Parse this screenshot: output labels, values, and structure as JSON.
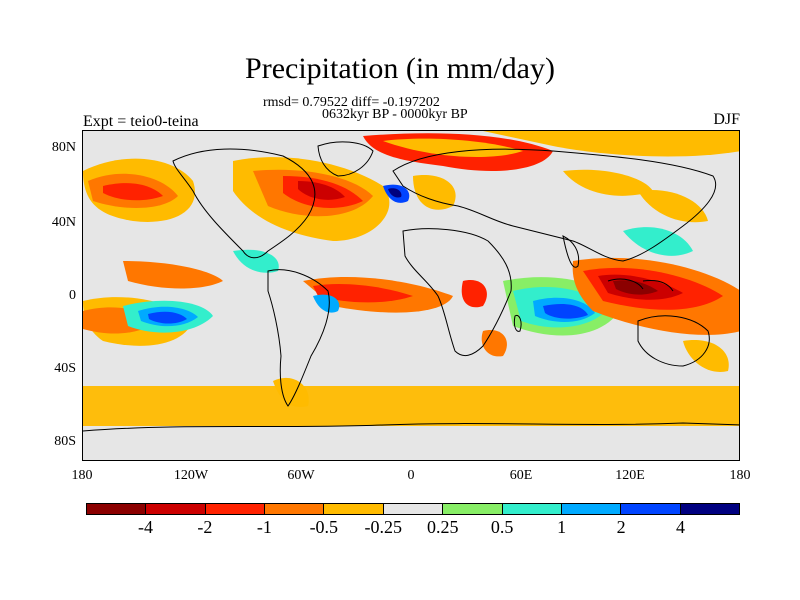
{
  "title": "Precipitation (in mm/day)",
  "stats": "rmsd= 0.79522 diff= -0.197202",
  "period": "0632kyr BP - 0000kyr BP",
  "experiment": "Expt = teio0-teina",
  "season": "DJF",
  "lat_labels": [
    "80N",
    "40N",
    "0",
    "40S",
    "80S"
  ],
  "lon_labels": [
    "180",
    "120W",
    "60W",
    "0",
    "60E",
    "120E",
    "180"
  ],
  "colorbar": {
    "colors": [
      "#8b0000",
      "#cc0000",
      "#ff2200",
      "#ff7700",
      "#ffbb00",
      "#e6e6e6",
      "#88ee66",
      "#33eecc",
      "#00aaff",
      "#0044ff",
      "#000080"
    ],
    "labels": [
      "-4",
      "-2",
      "-1",
      "-0.5",
      "-0.25",
      "0.25",
      "0.5",
      "1",
      "2",
      "4"
    ]
  },
  "colors": {
    "background_zero": "#e6e6e6",
    "coastline": "#000000"
  }
}
